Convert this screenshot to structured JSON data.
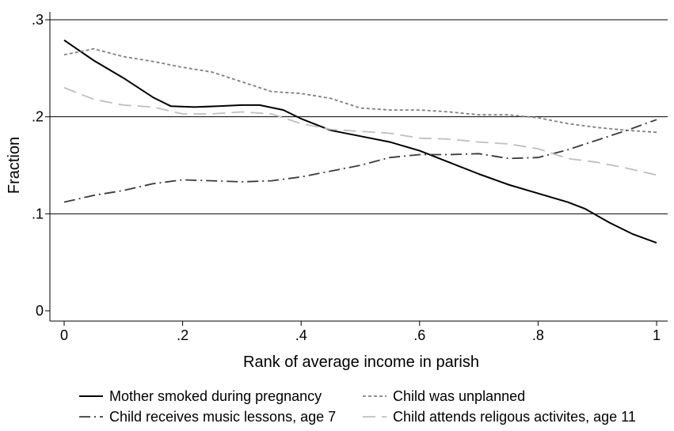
{
  "chart_data": {
    "type": "line",
    "xlabel": "Rank of average income in parish",
    "ylabel": "Fraction",
    "xlim": [
      0,
      1
    ],
    "ylim": [
      0,
      0.3
    ],
    "xticks": [
      0,
      0.2,
      0.4,
      0.6,
      0.8,
      1
    ],
    "xtick_labels": [
      "0",
      ".2",
      ".4",
      ".6",
      ".8",
      "1"
    ],
    "yticks": [
      0,
      0.1,
      0.2,
      0.3
    ],
    "ytick_labels": [
      "0",
      ".1",
      ".2",
      ".3"
    ],
    "grid": "horizontal",
    "legend_position": "bottom",
    "series": [
      {
        "name": "Mother smoked during pregnancy",
        "color": "#000000",
        "dash": "solid",
        "x": [
          0.0,
          0.05,
          0.1,
          0.15,
          0.18,
          0.22,
          0.26,
          0.3,
          0.33,
          0.37,
          0.4,
          0.45,
          0.5,
          0.55,
          0.6,
          0.65,
          0.7,
          0.75,
          0.8,
          0.85,
          0.88,
          0.92,
          0.96,
          1.0
        ],
        "y": [
          0.279,
          0.258,
          0.24,
          0.22,
          0.211,
          0.21,
          0.211,
          0.212,
          0.212,
          0.207,
          0.198,
          0.186,
          0.18,
          0.174,
          0.165,
          0.153,
          0.141,
          0.13,
          0.121,
          0.112,
          0.105,
          0.091,
          0.079,
          0.07
        ]
      },
      {
        "name": "Child was unplanned",
        "color": "#808080",
        "dash": "dotted",
        "x": [
          0.0,
          0.05,
          0.1,
          0.15,
          0.2,
          0.25,
          0.3,
          0.35,
          0.4,
          0.45,
          0.5,
          0.55,
          0.6,
          0.65,
          0.7,
          0.75,
          0.8,
          0.85,
          0.9,
          0.95,
          1.0
        ],
        "y": [
          0.264,
          0.27,
          0.262,
          0.257,
          0.251,
          0.246,
          0.236,
          0.226,
          0.224,
          0.219,
          0.209,
          0.207,
          0.207,
          0.205,
          0.202,
          0.202,
          0.199,
          0.193,
          0.189,
          0.186,
          0.184
        ]
      },
      {
        "name": "Child receives music lessons, age 7",
        "color": "#3a3a3a",
        "dash": "dashdot",
        "x": [
          0.0,
          0.05,
          0.1,
          0.15,
          0.2,
          0.25,
          0.3,
          0.35,
          0.4,
          0.45,
          0.5,
          0.55,
          0.6,
          0.65,
          0.7,
          0.75,
          0.8,
          0.85,
          0.9,
          0.95,
          1.0
        ],
        "y": [
          0.112,
          0.119,
          0.124,
          0.131,
          0.135,
          0.134,
          0.133,
          0.134,
          0.138,
          0.144,
          0.15,
          0.158,
          0.161,
          0.161,
          0.162,
          0.157,
          0.158,
          0.166,
          0.176,
          0.186,
          0.197
        ]
      },
      {
        "name": "Child attends religous activites, age 11",
        "color": "#bfbfbf",
        "dash": "longdash",
        "x": [
          0.0,
          0.05,
          0.1,
          0.15,
          0.2,
          0.25,
          0.3,
          0.35,
          0.4,
          0.45,
          0.5,
          0.55,
          0.6,
          0.65,
          0.7,
          0.75,
          0.8,
          0.85,
          0.9,
          0.95,
          1.0
        ],
        "y": [
          0.23,
          0.218,
          0.212,
          0.21,
          0.203,
          0.203,
          0.205,
          0.203,
          0.193,
          0.187,
          0.185,
          0.183,
          0.178,
          0.177,
          0.174,
          0.172,
          0.167,
          0.157,
          0.153,
          0.147,
          0.14
        ]
      }
    ]
  }
}
